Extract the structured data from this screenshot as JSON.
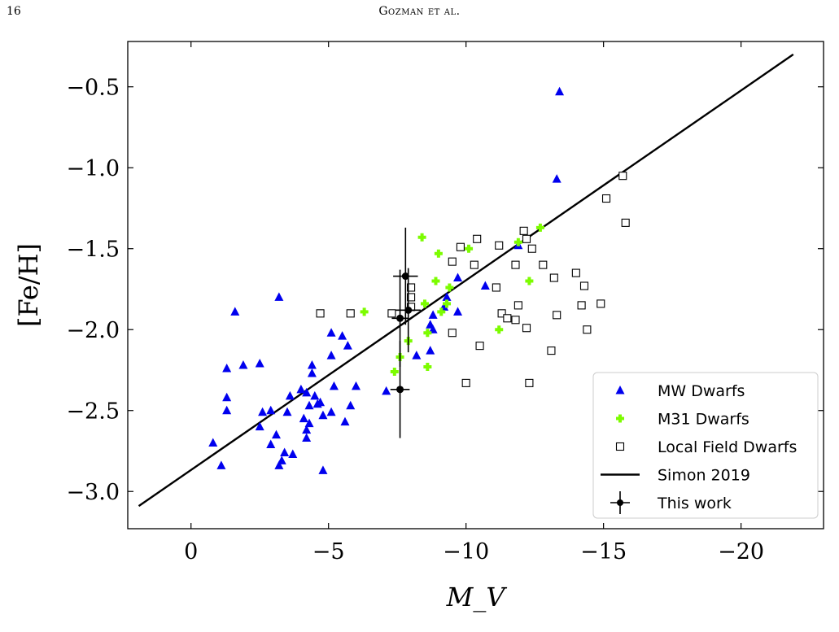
{
  "page": {
    "number": "16",
    "running_head": "Gozman et al."
  },
  "chart_data": {
    "type": "scatter",
    "xlabel": "M_V",
    "ylabel": "[Fe/H]",
    "xlim": [
      2.3,
      -23.0
    ],
    "ylim": [
      -3.23,
      -0.22
    ],
    "x_direction": "reversed",
    "x_ticks": [
      0,
      -5,
      -10,
      -15,
      -20
    ],
    "x_tick_labels": [
      "0",
      "−5",
      "−10",
      "−15",
      "−20"
    ],
    "y_ticks": [
      -3.0,
      -2.5,
      -2.0,
      -1.5,
      -1.0,
      -0.5
    ],
    "y_tick_labels": [
      "−3.0",
      "−2.5",
      "−2.0",
      "−1.5",
      "−1.0",
      "−0.5"
    ],
    "grid": false,
    "legend_position": "lower-right",
    "colors": {
      "mw": "#0000ee",
      "m31": "#7cfc00",
      "field": "#000000",
      "fit": "#000000",
      "this_work": "#000000"
    },
    "series": [
      {
        "name": "MW Dwarfs",
        "marker": "triangle",
        "points": [
          [
            -0.8,
            -2.7
          ],
          [
            -1.1,
            -2.84
          ],
          [
            -1.3,
            -2.24
          ],
          [
            -1.3,
            -2.42
          ],
          [
            -1.3,
            -2.5
          ],
          [
            -1.6,
            -1.89
          ],
          [
            -1.9,
            -2.22
          ],
          [
            -2.5,
            -2.21
          ],
          [
            -2.5,
            -2.6
          ],
          [
            -2.6,
            -2.51
          ],
          [
            -2.9,
            -2.5
          ],
          [
            -2.9,
            -2.71
          ],
          [
            -3.1,
            -2.65
          ],
          [
            -3.2,
            -2.84
          ],
          [
            -3.2,
            -1.8
          ],
          [
            -3.3,
            -2.81
          ],
          [
            -3.4,
            -2.76
          ],
          [
            -3.5,
            -2.51
          ],
          [
            -3.6,
            -2.41
          ],
          [
            -3.7,
            -2.77
          ],
          [
            -4.0,
            -2.37
          ],
          [
            -4.1,
            -2.55
          ],
          [
            -4.2,
            -2.62
          ],
          [
            -4.2,
            -2.67
          ],
          [
            -4.2,
            -2.39
          ],
          [
            -4.3,
            -2.58
          ],
          [
            -4.3,
            -2.47
          ],
          [
            -4.4,
            -2.27
          ],
          [
            -4.4,
            -2.22
          ],
          [
            -4.5,
            -2.41
          ],
          [
            -4.6,
            -2.46
          ],
          [
            -4.7,
            -2.45
          ],
          [
            -4.8,
            -2.87
          ],
          [
            -4.8,
            -2.53
          ],
          [
            -5.1,
            -2.51
          ],
          [
            -5.1,
            -2.16
          ],
          [
            -5.1,
            -2.02
          ],
          [
            -5.2,
            -2.35
          ],
          [
            -5.5,
            -2.04
          ],
          [
            -5.6,
            -2.57
          ],
          [
            -5.7,
            -2.1
          ],
          [
            -5.8,
            -2.47
          ],
          [
            -6.0,
            -2.35
          ],
          [
            -7.1,
            -2.38
          ],
          [
            -8.2,
            -2.16
          ],
          [
            -8.7,
            -2.13
          ],
          [
            -8.7,
            -1.97
          ],
          [
            -8.8,
            -1.91
          ],
          [
            -8.8,
            -2.0
          ],
          [
            -9.2,
            -1.86
          ],
          [
            -9.3,
            -1.8
          ],
          [
            -9.7,
            -1.68
          ],
          [
            -9.7,
            -1.89
          ],
          [
            -10.7,
            -1.73
          ],
          [
            -11.9,
            -1.48
          ],
          [
            -13.3,
            -1.07
          ],
          [
            -13.4,
            -0.53
          ]
        ]
      },
      {
        "name": "M31 Dwarfs",
        "marker": "plus",
        "points": [
          [
            -6.3,
            -1.89
          ],
          [
            -7.4,
            -2.26
          ],
          [
            -7.6,
            -2.17
          ],
          [
            -7.9,
            -2.07
          ],
          [
            -8.4,
            -1.43
          ],
          [
            -8.5,
            -1.84
          ],
          [
            -8.6,
            -2.02
          ],
          [
            -8.6,
            -2.23
          ],
          [
            -8.9,
            -1.7
          ],
          [
            -9.0,
            -1.53
          ],
          [
            -9.1,
            -1.89
          ],
          [
            -9.3,
            -1.84
          ],
          [
            -9.4,
            -1.74
          ],
          [
            -10.1,
            -1.5
          ],
          [
            -11.2,
            -2.0
          ],
          [
            -11.9,
            -1.46
          ],
          [
            -12.3,
            -1.7
          ],
          [
            -12.7,
            -1.37
          ]
        ]
      },
      {
        "name": "Local Field Dwarfs",
        "marker": "open-square",
        "points": [
          [
            -4.7,
            -1.9
          ],
          [
            -5.8,
            -1.9
          ],
          [
            -7.3,
            -1.9
          ],
          [
            -8.0,
            -1.74
          ],
          [
            -8.0,
            -1.8
          ],
          [
            -8.0,
            -1.86
          ],
          [
            -9.5,
            -1.58
          ],
          [
            -9.5,
            -2.02
          ],
          [
            -9.8,
            -1.49
          ],
          [
            -10.0,
            -2.33
          ],
          [
            -10.3,
            -1.6
          ],
          [
            -10.4,
            -1.44
          ],
          [
            -10.5,
            -2.1
          ],
          [
            -11.1,
            -1.74
          ],
          [
            -11.2,
            -1.48
          ],
          [
            -11.3,
            -1.9
          ],
          [
            -11.5,
            -1.93
          ],
          [
            -11.8,
            -1.6
          ],
          [
            -11.8,
            -1.94
          ],
          [
            -11.9,
            -1.85
          ],
          [
            -12.1,
            -1.39
          ],
          [
            -12.2,
            -1.44
          ],
          [
            -12.2,
            -1.99
          ],
          [
            -12.3,
            -2.33
          ],
          [
            -12.4,
            -1.5
          ],
          [
            -12.8,
            -1.6
          ],
          [
            -13.1,
            -2.13
          ],
          [
            -13.2,
            -1.68
          ],
          [
            -13.3,
            -1.91
          ],
          [
            -14.0,
            -1.65
          ],
          [
            -14.2,
            -1.85
          ],
          [
            -14.3,
            -1.73
          ],
          [
            -14.4,
            -2.0
          ],
          [
            -14.9,
            -1.84
          ],
          [
            -15.1,
            -1.19
          ],
          [
            -15.7,
            -1.05
          ],
          [
            -15.8,
            -1.34
          ]
        ]
      },
      {
        "name": "Simon 2019",
        "marker": "line",
        "x": [
          1.9,
          -21.9
        ],
        "y": [
          -3.09,
          -0.3
        ]
      },
      {
        "name": "This work",
        "marker": "errorbar",
        "points": [
          {
            "x": -7.8,
            "y": -1.67,
            "xerr": 0.45,
            "yerr": 0.3
          },
          {
            "x": -7.9,
            "y": -1.88,
            "xerr": 0.45,
            "yerr": 0.26
          },
          {
            "x": -7.6,
            "y": -1.93,
            "xerr": 0.3,
            "yerr": 0.3
          },
          {
            "x": -7.6,
            "y": -2.37,
            "xerr": 0.35,
            "yerr": 0.3
          }
        ]
      }
    ]
  }
}
